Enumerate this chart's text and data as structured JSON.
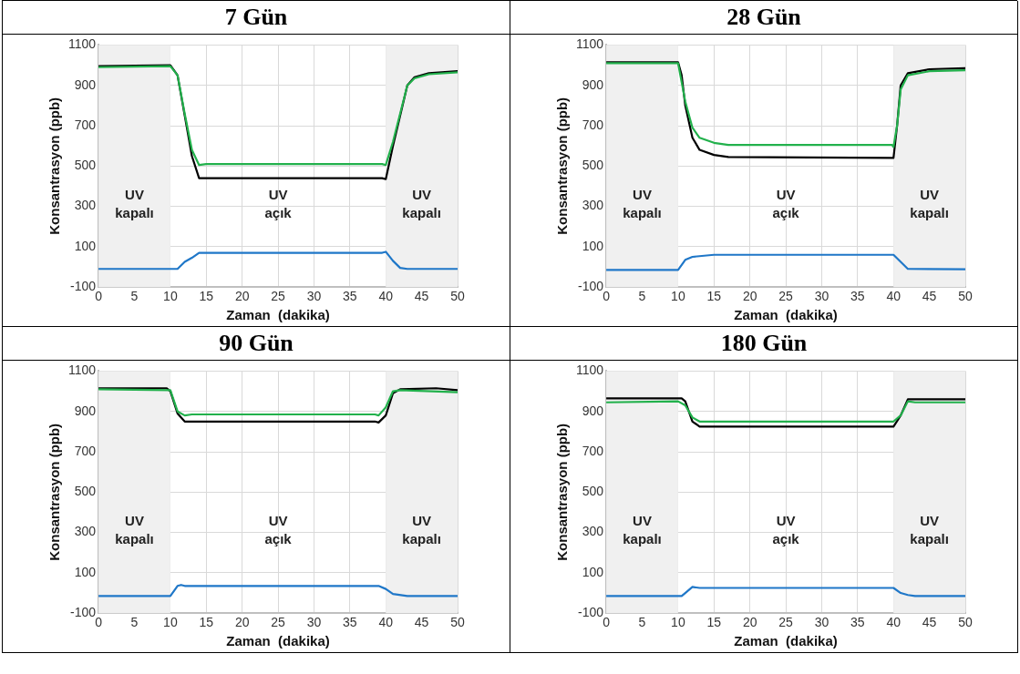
{
  "chart_data": [
    {
      "type": "line",
      "title": "7 Gün",
      "xlabel": "Zaman  (dakika)",
      "ylabel": "Konsantrasyon (ppb)",
      "xlim": [
        0,
        50
      ],
      "xticks": [
        0,
        5,
        10,
        15,
        20,
        25,
        30,
        35,
        40,
        45,
        50
      ],
      "ylim": [
        -100,
        1100
      ],
      "yticks": [
        -100,
        100,
        300,
        500,
        700,
        900,
        1100
      ],
      "grid": true,
      "legend": false,
      "marker": "none",
      "line_style": "solid",
      "bands": [
        {
          "axis": "x",
          "from": 0,
          "to": 10,
          "color": "#f0f0f0"
        },
        {
          "axis": "x",
          "from": 40,
          "to": 50,
          "color": "#f0f0f0"
        }
      ],
      "annotations": [
        "UV kapalı",
        "UV açık",
        "UV kapalı"
      ],
      "series": [
        {
          "color": "#22b14c",
          "x": [
            0,
            10,
            11,
            12,
            13,
            14,
            15,
            39.5,
            40,
            41,
            42,
            43,
            44,
            46,
            50
          ],
          "values": [
            990,
            995,
            950,
            760,
            580,
            505,
            510,
            510,
            505,
            620,
            760,
            900,
            935,
            955,
            965
          ]
        },
        {
          "color": "#000000",
          "x": [
            0,
            10,
            11,
            12,
            13,
            14,
            15,
            39.5,
            40,
            41,
            42,
            43,
            44,
            46,
            50
          ],
          "values": [
            995,
            1000,
            950,
            750,
            550,
            440,
            440,
            440,
            435,
            600,
            750,
            900,
            940,
            960,
            970
          ]
        },
        {
          "color": "#1f77c8",
          "x": [
            0,
            11,
            12,
            13,
            14,
            39.5,
            40,
            41,
            42,
            43,
            50
          ],
          "values": [
            -10,
            -10,
            25,
            45,
            70,
            70,
            75,
            30,
            -5,
            -10,
            -10
          ]
        }
      ]
    },
    {
      "type": "line",
      "title": "28 Gün",
      "xlabel": "Zaman  (dakika)",
      "ylabel": "Konsantrasyon (ppb)",
      "xlim": [
        0,
        50
      ],
      "xticks": [
        0,
        5,
        10,
        15,
        20,
        25,
        30,
        35,
        40,
        45,
        50
      ],
      "ylim": [
        -100,
        1100
      ],
      "yticks": [
        -100,
        100,
        300,
        500,
        700,
        900,
        1100
      ],
      "grid": true,
      "legend": false,
      "marker": "none",
      "line_style": "solid",
      "bands": [
        {
          "axis": "x",
          "from": 0,
          "to": 10,
          "color": "#f0f0f0"
        },
        {
          "axis": "x",
          "from": 40,
          "to": 50,
          "color": "#f0f0f0"
        }
      ],
      "annotations": [
        "UV kapalı",
        "UV açık",
        "UV kapalı"
      ],
      "series": [
        {
          "color": "#22b14c",
          "x": [
            0,
            10,
            11,
            12,
            13,
            15,
            17,
            39.8,
            40,
            40.5,
            41,
            42,
            45,
            50
          ],
          "values": [
            1010,
            1010,
            820,
            690,
            640,
            615,
            605,
            605,
            595,
            700,
            880,
            950,
            970,
            975
          ]
        },
        {
          "color": "#000000",
          "x": [
            0,
            10,
            10.5,
            11,
            12,
            13,
            15,
            17,
            40,
            40.5,
            41,
            42,
            45,
            50
          ],
          "values": [
            1015,
            1015,
            950,
            800,
            640,
            580,
            555,
            545,
            540,
            700,
            900,
            960,
            980,
            985
          ]
        },
        {
          "color": "#1f77c8",
          "x": [
            0,
            10,
            11,
            12,
            15,
            40,
            41,
            42,
            50
          ],
          "values": [
            -15,
            -15,
            35,
            50,
            60,
            60,
            25,
            -10,
            -12
          ]
        }
      ]
    },
    {
      "type": "line",
      "title": "90 Gün",
      "xlabel": "Zaman  (dakika)",
      "ylabel": "Konsantrasyon (ppb)",
      "xlim": [
        0,
        50
      ],
      "xticks": [
        0,
        5,
        10,
        15,
        20,
        25,
        30,
        35,
        40,
        45,
        50
      ],
      "ylim": [
        -100,
        1100
      ],
      "yticks": [
        -100,
        100,
        300,
        500,
        700,
        900,
        1100
      ],
      "grid": true,
      "legend": false,
      "marker": "none",
      "line_style": "solid",
      "bands": [
        {
          "axis": "x",
          "from": 0,
          "to": 10,
          "color": "#f0f0f0"
        },
        {
          "axis": "x",
          "from": 40,
          "to": 50,
          "color": "#f0f0f0"
        }
      ],
      "annotations": [
        "UV kapalı",
        "UV açık",
        "UV kapalı"
      ],
      "series": [
        {
          "color": "#22b14c",
          "x": [
            0,
            10,
            11,
            12,
            13,
            38.5,
            39,
            40,
            41,
            42,
            50
          ],
          "values": [
            1010,
            1005,
            900,
            880,
            885,
            885,
            880,
            920,
            1000,
            1005,
            995
          ]
        },
        {
          "color": "#000000",
          "x": [
            0,
            9.5,
            10,
            11,
            12,
            38.5,
            39,
            40,
            41,
            42,
            47,
            50
          ],
          "values": [
            1015,
            1015,
            1000,
            890,
            850,
            850,
            845,
            880,
            990,
            1010,
            1015,
            1005
          ]
        },
        {
          "color": "#1f77c8",
          "x": [
            0,
            10,
            11,
            11.5,
            12,
            39,
            40,
            41,
            43,
            50
          ],
          "values": [
            -15,
            -15,
            35,
            40,
            35,
            35,
            20,
            -5,
            -15,
            -15
          ]
        }
      ]
    },
    {
      "type": "line",
      "title": "180 Gün",
      "xlabel": "Zaman  (dakika)",
      "ylabel": "Konsantrasyon (ppb)",
      "xlim": [
        0,
        50
      ],
      "xticks": [
        0,
        5,
        10,
        15,
        20,
        25,
        30,
        35,
        40,
        45,
        50
      ],
      "ylim": [
        -100,
        1100
      ],
      "yticks": [
        -100,
        100,
        300,
        500,
        700,
        900,
        1100
      ],
      "grid": true,
      "legend": false,
      "marker": "none",
      "line_style": "solid",
      "bands": [
        {
          "axis": "x",
          "from": 0,
          "to": 10,
          "color": "#f0f0f0"
        },
        {
          "axis": "x",
          "from": 40,
          "to": 50,
          "color": "#f0f0f0"
        }
      ],
      "annotations": [
        "UV kapalı",
        "UV açık",
        "UV kapalı"
      ],
      "series": [
        {
          "color": "#22b14c",
          "x": [
            0,
            10,
            11,
            12,
            13,
            40,
            41,
            42,
            43,
            50
          ],
          "values": [
            945,
            950,
            930,
            870,
            850,
            850,
            880,
            950,
            945,
            945
          ]
        },
        {
          "color": "#000000",
          "x": [
            0,
            10.5,
            11,
            12,
            13,
            40,
            41,
            42,
            50
          ],
          "values": [
            965,
            965,
            950,
            850,
            825,
            825,
            880,
            960,
            960
          ]
        },
        {
          "color": "#1f77c8",
          "x": [
            0,
            10.5,
            11,
            12,
            13,
            40,
            41,
            42,
            43,
            50
          ],
          "values": [
            -15,
            -15,
            0,
            30,
            25,
            25,
            0,
            -10,
            -15,
            -15
          ]
        }
      ]
    }
  ]
}
